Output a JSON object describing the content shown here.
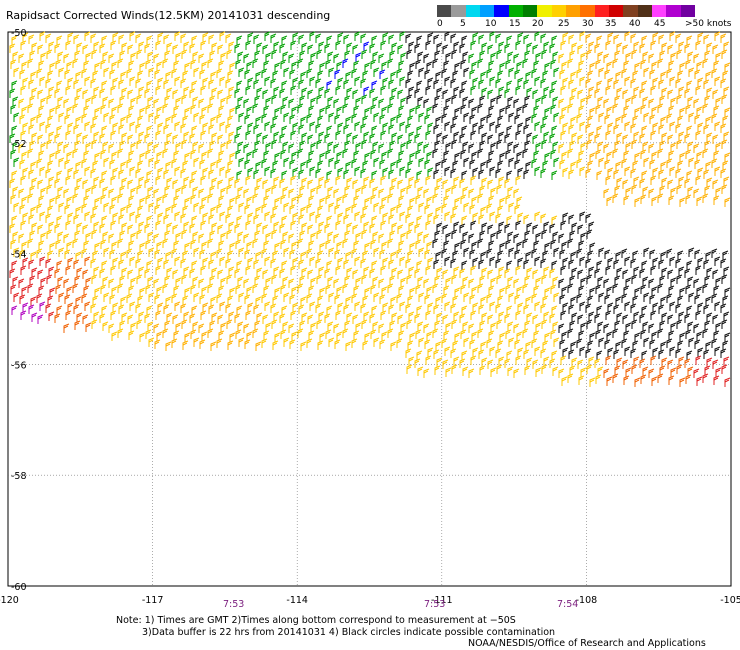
{
  "title": "Rapidsact Corrected Winds(12.5KM) 20141031 descending",
  "legend": {
    "colors": [
      "#4a4a4a",
      "#9a9a9a",
      "#00d8f0",
      "#00a0ff",
      "#0000ff",
      "#00b000",
      "#008000",
      "#f0f000",
      "#ffd000",
      "#ffa000",
      "#ff7000",
      "#ff2020",
      "#d00000",
      "#804020",
      "#503018",
      "#ff40ff",
      "#b000d0",
      "#7000a0"
    ],
    "labels": [
      "0",
      "5",
      "10",
      "15",
      "20",
      "25",
      "30",
      "35",
      "40",
      "45",
      ">50 knots"
    ]
  },
  "axes": {
    "x_ticks": [
      "-120",
      "-117",
      "-114",
      "-111",
      "-108",
      "-105"
    ],
    "y_ticks": [
      "-50",
      "-52",
      "-54",
      "-56",
      "-58",
      "-60"
    ]
  },
  "time_labels": [
    "7:53",
    "7:53",
    "7:54"
  ],
  "notes": {
    "line1": "Note: 1) Times are GMT 2)Times along bottom correspond to measurement at −50S",
    "line2": "3)Data buffer is 22 hrs from 20141031 4) Black circles indicate possible contamination",
    "line3": "NOAA/NESDIS/Office of Research and Applications"
  }
}
